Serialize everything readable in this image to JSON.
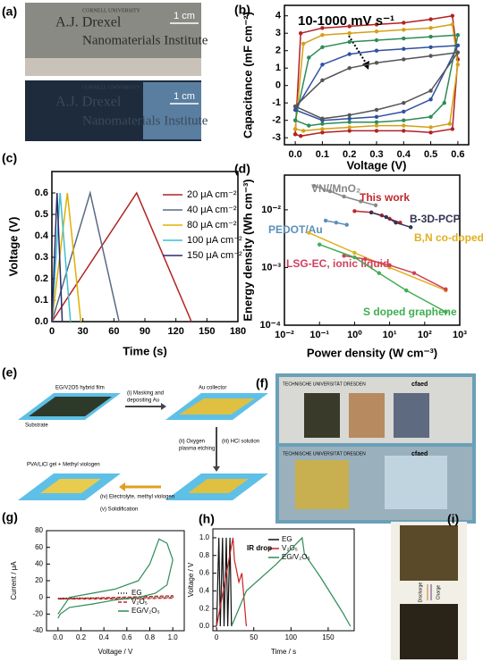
{
  "panel_labels": [
    "(a)",
    "(b)",
    "(c)",
    "(d)",
    "(e)",
    "(f)",
    "(g)",
    "(h)",
    "(i)"
  ],
  "photo_a": {
    "scale_bars": [
      "1 cm",
      "1 cm"
    ],
    "logo_top": [
      "CORNELL UNIVERSITY",
      "A.J. Drexel",
      "Nanomaterials Institute"
    ],
    "logo_bottom": [
      "CORNELL UNIVERSITY",
      "A.J. Drexel",
      "Nanomaterials Institute"
    ]
  },
  "diagram_e": {
    "film": "EG/V2O5 hybrid film",
    "substrate": "Substrate",
    "step1": [
      "(i) Masking and",
      "depositing Au"
    ],
    "collector": "Au collector",
    "step2": [
      "(ii) Oxygen",
      "plasma etching"
    ],
    "step3": "(iii) HCl solution",
    "gel": "PVA/LiCl gel + Methyl viologen",
    "step4": "(iv) Electrolyte, methyl viologen",
    "step5": "(v) Solidification"
  },
  "photo_f": {
    "texts": [
      "TECHNISCHE UNIVERSITÄT DRESDEN",
      "cfaed",
      "TECHNISCHE UNIVERSITÄT DRESDEN",
      "cfaed"
    ]
  },
  "photo_i": {
    "texts": [
      "Charge",
      "Discharge"
    ]
  },
  "chart_data": [
    {
      "type": "line",
      "xlabel": "Voltage (V)",
      "ylabel": "Capacitance (mF cm⁻²)",
      "annotation": "10-1000 mV s⁻¹",
      "xlim": [
        -0.04,
        0.64
      ],
      "ylim": [
        -3.4,
        4.6
      ],
      "xticks": [
        {
          "value": 0,
          "label": "0.0"
        },
        {
          "value": 0.1,
          "label": "0.1"
        },
        {
          "value": 0.2,
          "label": "0.2"
        },
        {
          "value": 0.3,
          "label": "0.3"
        },
        {
          "value": 0.4,
          "label": "0.4"
        },
        {
          "value": 0.5,
          "label": "0.5"
        },
        {
          "value": 0.6,
          "label": "0.6"
        }
      ],
      "yticks": [
        -3,
        -2,
        -1,
        0,
        1,
        2,
        3,
        4
      ],
      "series": [
        {
          "color": "#b22222",
          "x": [
            0,
            0.02,
            0.1,
            0.2,
            0.3,
            0.4,
            0.5,
            0.58,
            0.6,
            0.58,
            0.5,
            0.4,
            0.3,
            0.2,
            0.1,
            0.02,
            0
          ],
          "values": [
            -2.8,
            3.0,
            3.3,
            3.4,
            3.5,
            3.6,
            3.8,
            4.0,
            1.5,
            -2.5,
            -2.7,
            -2.6,
            -2.6,
            -2.6,
            -2.7,
            -2.9,
            -2.8
          ]
        },
        {
          "color": "#d4a017",
          "x": [
            0,
            0.03,
            0.1,
            0.2,
            0.3,
            0.4,
            0.5,
            0.58,
            0.6,
            0.57,
            0.5,
            0.4,
            0.3,
            0.2,
            0.1,
            0.03,
            0
          ],
          "values": [
            -2.5,
            2.4,
            2.9,
            3.0,
            3.1,
            3.2,
            3.3,
            3.5,
            1.2,
            -2.2,
            -2.4,
            -2.3,
            -2.3,
            -2.4,
            -2.5,
            -2.6,
            -2.5
          ]
        },
        {
          "color": "#2e8b57",
          "x": [
            0,
            0.05,
            0.1,
            0.2,
            0.3,
            0.4,
            0.5,
            0.6,
            0.55,
            0.5,
            0.4,
            0.3,
            0.2,
            0.1,
            0.05,
            0
          ],
          "values": [
            -2.0,
            1.6,
            2.2,
            2.5,
            2.6,
            2.7,
            2.8,
            2.9,
            -1.0,
            -1.8,
            -2.0,
            -2.1,
            -2.1,
            -2.2,
            -2.3,
            -2.0
          ]
        },
        {
          "color": "#3050a0",
          "x": [
            0,
            0.1,
            0.2,
            0.3,
            0.4,
            0.5,
            0.6,
            0.5,
            0.4,
            0.3,
            0.2,
            0.1,
            0
          ],
          "values": [
            -1.4,
            1.2,
            1.8,
            2.0,
            2.1,
            2.2,
            2.3,
            -0.8,
            -1.5,
            -1.8,
            -1.9,
            -2.0,
            -1.4
          ]
        },
        {
          "color": "#555555",
          "x": [
            0,
            0.1,
            0.2,
            0.3,
            0.4,
            0.5,
            0.6,
            0.5,
            0.4,
            0.3,
            0.2,
            0.1,
            0
          ],
          "values": [
            -1.2,
            0.3,
            1.0,
            1.3,
            1.5,
            1.7,
            1.9,
            -0.3,
            -1.0,
            -1.4,
            -1.7,
            -1.9,
            -1.2
          ]
        }
      ]
    },
    {
      "type": "line",
      "xlabel": "Time (s)",
      "ylabel": "Voltage (V)",
      "xlim": [
        0,
        180
      ],
      "ylim": [
        0,
        0.7
      ],
      "xticks": [
        0,
        30,
        60,
        90,
        120,
        150,
        180
      ],
      "yticks": [
        {
          "value": 0,
          "label": "0.0"
        },
        {
          "value": 0.1,
          "label": "0.1"
        },
        {
          "value": 0.2,
          "label": "0.2"
        },
        {
          "value": 0.3,
          "label": "0.3"
        },
        {
          "value": 0.4,
          "label": "0.4"
        },
        {
          "value": 0.5,
          "label": "0.5"
        },
        {
          "value": 0.6,
          "label": "0.6"
        }
      ],
      "series": [
        {
          "name": "20 μA cm⁻²",
          "color": "#b22222",
          "x": [
            0,
            82,
            135
          ],
          "values": [
            0,
            0.6,
            0
          ]
        },
        {
          "name": "40 μA cm⁻²",
          "color": "#5a6a85",
          "x": [
            0,
            37,
            65
          ],
          "values": [
            0,
            0.6,
            0
          ]
        },
        {
          "name": "80 μA cm⁻²",
          "color": "#e0b000",
          "x": [
            0,
            15,
            28
          ],
          "values": [
            0,
            0.6,
            0
          ]
        },
        {
          "name": "100 μA cm⁻²",
          "color": "#3fbfcf",
          "x": [
            0,
            8,
            18
          ],
          "values": [
            0,
            0.6,
            0
          ]
        },
        {
          "name": "150 μA cm⁻²",
          "color": "#2c2c6c",
          "x": [
            0,
            5,
            10
          ],
          "values": [
            0,
            0.6,
            0
          ]
        }
      ]
    },
    {
      "type": "line",
      "xlabel": "Power density (W cm⁻³)",
      "ylabel": "Energy density (Wh cm⁻³)",
      "xscale": "log",
      "yscale": "log",
      "xlim": [
        0.01,
        1000
      ],
      "ylim": [
        0.0001,
        0.04
      ],
      "xticks": [
        {
          "value": 0.01,
          "label": "10⁻²"
        },
        {
          "value": 0.1,
          "label": "10⁻¹"
        },
        {
          "value": 1,
          "label": "10⁰"
        },
        {
          "value": 10,
          "label": "10¹"
        },
        {
          "value": 100,
          "label": "10²"
        },
        {
          "value": 1000,
          "label": "10³"
        }
      ],
      "yticks": [
        {
          "value": 0.0001,
          "label": "10⁻⁴"
        },
        {
          "value": 0.001,
          "label": "10⁻³"
        },
        {
          "value": 0.01,
          "label": "10⁻²"
        }
      ],
      "series": [
        {
          "label": "VN//MnO₂",
          "color": "#888888",
          "x": [
            0.07,
            0.2,
            0.5,
            1.5,
            4
          ],
          "values": [
            0.026,
            0.021,
            0.017,
            0.014,
            0.012
          ]
        },
        {
          "label": "This work",
          "color": "#c0282d",
          "x": [
            1,
            3,
            6,
            10,
            20
          ],
          "values": [
            0.0095,
            0.009,
            0.008,
            0.007,
            0.006
          ]
        },
        {
          "label": "B-3D-PCP",
          "color": "#333355",
          "x": [
            3,
            8,
            15,
            40
          ],
          "values": [
            0.009,
            0.0075,
            0.006,
            0.005
          ]
        },
        {
          "label": "PEDOT/Au",
          "color": "#5b8fb9",
          "x": [
            0.15,
            0.3,
            0.6
          ],
          "values": [
            0.0065,
            0.006,
            0.0055
          ]
        },
        {
          "label": "B,N co-doped graphene",
          "color": "#e0b020",
          "x": [
            0.05,
            1,
            10,
            400
          ],
          "values": [
            0.004,
            0.0018,
            0.001,
            0.0004
          ]
        },
        {
          "label": "LSG-EC, ionic liquid",
          "color": "#d0405a",
          "x": [
            0.5,
            2,
            10,
            50,
            400
          ],
          "values": [
            0.0016,
            0.0014,
            0.0011,
            0.0008,
            0.00042
          ]
        },
        {
          "label": "S doped graphene",
          "color": "#3fae50",
          "x": [
            0.1,
            1,
            5,
            30,
            400
          ],
          "values": [
            0.0025,
            0.0015,
            0.0008,
            0.0004,
            0.00017
          ]
        }
      ]
    },
    {
      "type": "line",
      "xlabel": "Voltage / V",
      "ylabel": "Current / μA",
      "xlim": [
        -0.1,
        1.1
      ],
      "ylim": [
        -40,
        80
      ],
      "xticks": [
        {
          "value": 0,
          "label": "0.0"
        },
        {
          "value": 0.2,
          "label": "0.2"
        },
        {
          "value": 0.4,
          "label": "0.4"
        },
        {
          "value": 0.6,
          "label": "0.6"
        },
        {
          "value": 0.8,
          "label": "0.8"
        },
        {
          "value": 1,
          "label": "1.0"
        }
      ],
      "yticks": [
        -40,
        -20,
        0,
        20,
        40,
        60,
        80
      ],
      "series": [
        {
          "name": "EG",
          "color": "#111111",
          "style": "dotted",
          "x": [
            0,
            0.5,
            1,
            1,
            0.5,
            0
          ],
          "values": [
            -1,
            0,
            1,
            0,
            -1,
            -1
          ]
        },
        {
          "name": "V₂O₅",
          "color": "#cc2222",
          "style": "dashed",
          "x": [
            0,
            0.5,
            1,
            1,
            0.5,
            0
          ],
          "values": [
            -2,
            0,
            2,
            -1,
            -2,
            -2
          ]
        },
        {
          "name": "EG/V₂O₅",
          "color": "#2e8b57",
          "style": "solid",
          "x": [
            0,
            0.1,
            0.3,
            0.5,
            0.7,
            0.8,
            0.88,
            0.95,
            1,
            0.95,
            0.85,
            0.7,
            0.5,
            0.3,
            0.1,
            0.02,
            0
          ],
          "values": [
            -20,
            0,
            5,
            10,
            20,
            40,
            70,
            65,
            45,
            15,
            5,
            0,
            -3,
            -8,
            -12,
            -20,
            -25
          ]
        }
      ]
    },
    {
      "type": "line",
      "xlabel": "Time / s",
      "ylabel": "Voltage / V",
      "annotation": "IR drop",
      "xlim": [
        -5,
        185
      ],
      "ylim": [
        -0.05,
        1.1
      ],
      "xticks": [
        0,
        50,
        100,
        150
      ],
      "yticks": [
        {
          "value": 0,
          "label": "0.0"
        },
        {
          "value": 0.2,
          "label": "0.2"
        },
        {
          "value": 0.4,
          "label": "0.4"
        },
        {
          "value": 0.6,
          "label": "0.6"
        },
        {
          "value": 0.8,
          "label": "0.8"
        },
        {
          "value": 1,
          "label": "1.0"
        }
      ],
      "series": [
        {
          "name": "EG",
          "color": "#111111",
          "style": "solid",
          "x": [
            0,
            3,
            5,
            8,
            10,
            13,
            15,
            18,
            20
          ],
          "values": [
            0,
            1,
            0,
            1,
            0,
            1,
            0,
            1,
            0
          ]
        },
        {
          "name": "V₂O₅",
          "color": "#cc2222",
          "style": "solid",
          "x": [
            0,
            22,
            24,
            30,
            34,
            40
          ],
          "values": [
            0,
            1,
            0.75,
            0.5,
            0.6,
            0
          ]
        },
        {
          "name": "EG/V₂O₅",
          "color": "#2e8b57",
          "style": "solid",
          "x": [
            20,
            40,
            80,
            115,
            118,
            140,
            170,
            180
          ],
          "values": [
            0,
            0.4,
            0.7,
            1,
            0.82,
            0.55,
            0.15,
            0
          ]
        }
      ]
    }
  ]
}
